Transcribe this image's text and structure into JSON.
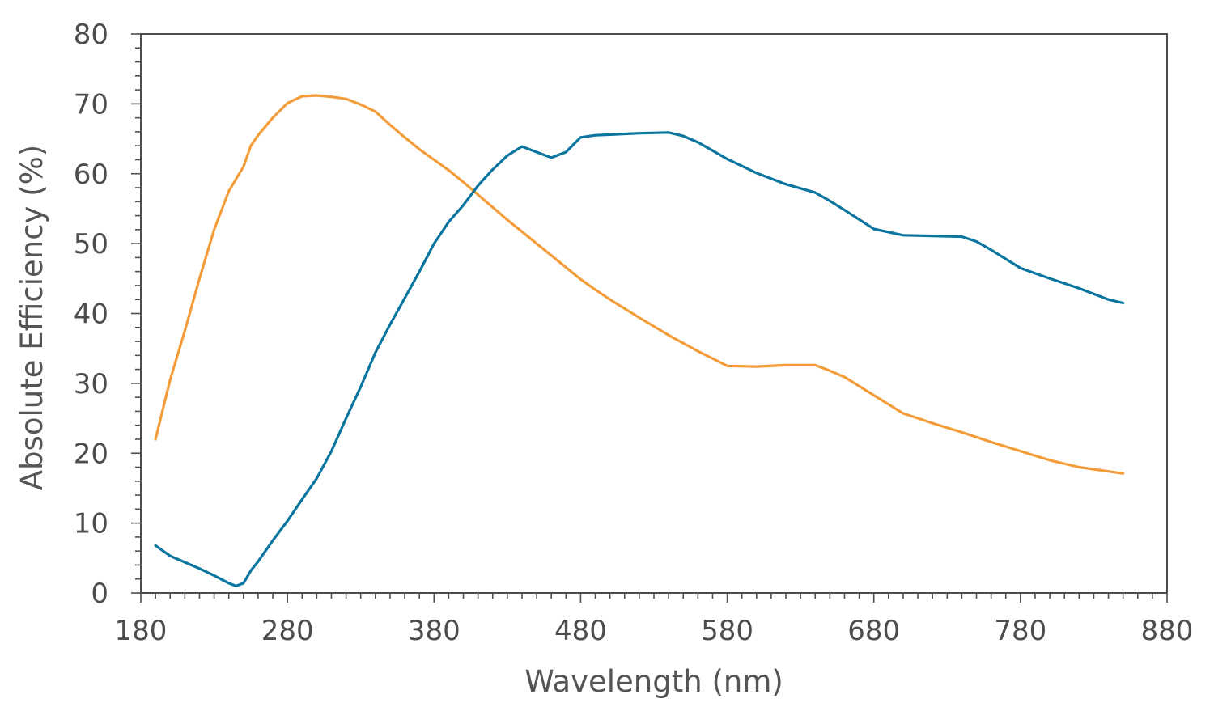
{
  "chart_data": {
    "type": "line",
    "xlabel": "Wavelength (nm)",
    "ylabel": "Absolute Efficiency (%)",
    "xlim": [
      180,
      880
    ],
    "ylim": [
      0,
      80
    ],
    "x_ticks": [
      180,
      280,
      380,
      480,
      580,
      680,
      780,
      880
    ],
    "y_ticks": [
      0,
      10,
      20,
      30,
      40,
      50,
      60,
      70,
      80
    ],
    "x_minor_step": 10,
    "y_minor_step": 2,
    "grid": false,
    "legend": "none",
    "colors": {
      "axis": "#4d4d4d",
      "text": "#4d4d4d"
    },
    "series": [
      {
        "color": "#f39c3a",
        "x": [
          190,
          200,
          210,
          220,
          230,
          240,
          250,
          255,
          260,
          270,
          280,
          290,
          300,
          310,
          320,
          330,
          340,
          350,
          360,
          370,
          380,
          390,
          400,
          410,
          420,
          430,
          440,
          450,
          460,
          470,
          480,
          490,
          500,
          520,
          540,
          560,
          580,
          600,
          620,
          640,
          650,
          660,
          680,
          700,
          720,
          740,
          760,
          780,
          800,
          820,
          840,
          850
        ],
        "y": [
          22,
          30.5,
          37.5,
          45,
          52,
          57.5,
          61,
          64,
          65.5,
          68,
          70.1,
          71.1,
          71.2,
          71.0,
          70.7,
          69.9,
          68.9,
          67,
          65.2,
          63.5,
          62,
          60.5,
          58.8,
          57,
          55.2,
          53.4,
          51.7,
          50,
          48.3,
          46.6,
          44.9,
          43.4,
          42,
          39.4,
          36.9,
          34.6,
          32.5,
          32.4,
          32.6,
          32.6,
          31.8,
          30.9,
          28.3,
          25.7,
          24.3,
          23,
          21.6,
          20.3,
          19,
          18,
          17.4,
          17.1
        ]
      },
      {
        "color": "#0a759e",
        "x": [
          190,
          200,
          210,
          220,
          230,
          240,
          245,
          250,
          255,
          260,
          270,
          280,
          290,
          300,
          310,
          320,
          330,
          340,
          350,
          360,
          370,
          380,
          390,
          400,
          410,
          420,
          430,
          440,
          450,
          460,
          470,
          480,
          490,
          500,
          520,
          540,
          550,
          560,
          570,
          580,
          590,
          600,
          620,
          640,
          650,
          660,
          680,
          700,
          720,
          740,
          750,
          760,
          780,
          800,
          820,
          840,
          850
        ],
        "y": [
          6.8,
          5.3,
          4.4,
          3.5,
          2.5,
          1.4,
          1,
          1.4,
          3.2,
          4.5,
          7.5,
          10.3,
          13.4,
          16.4,
          20.3,
          25,
          29.5,
          34.4,
          38.4,
          42.2,
          46,
          50,
          53.1,
          55.5,
          58.3,
          60.6,
          62.6,
          63.9,
          63.1,
          62.3,
          63.1,
          65.2,
          65.5,
          65.6,
          65.8,
          65.9,
          65.4,
          64.5,
          63.3,
          62.1,
          61.1,
          60.1,
          58.5,
          57.3,
          56.1,
          54.8,
          52.1,
          51.2,
          51.1,
          51,
          50.3,
          49.1,
          46.5,
          45,
          43.6,
          42,
          41.5
        ]
      }
    ]
  }
}
